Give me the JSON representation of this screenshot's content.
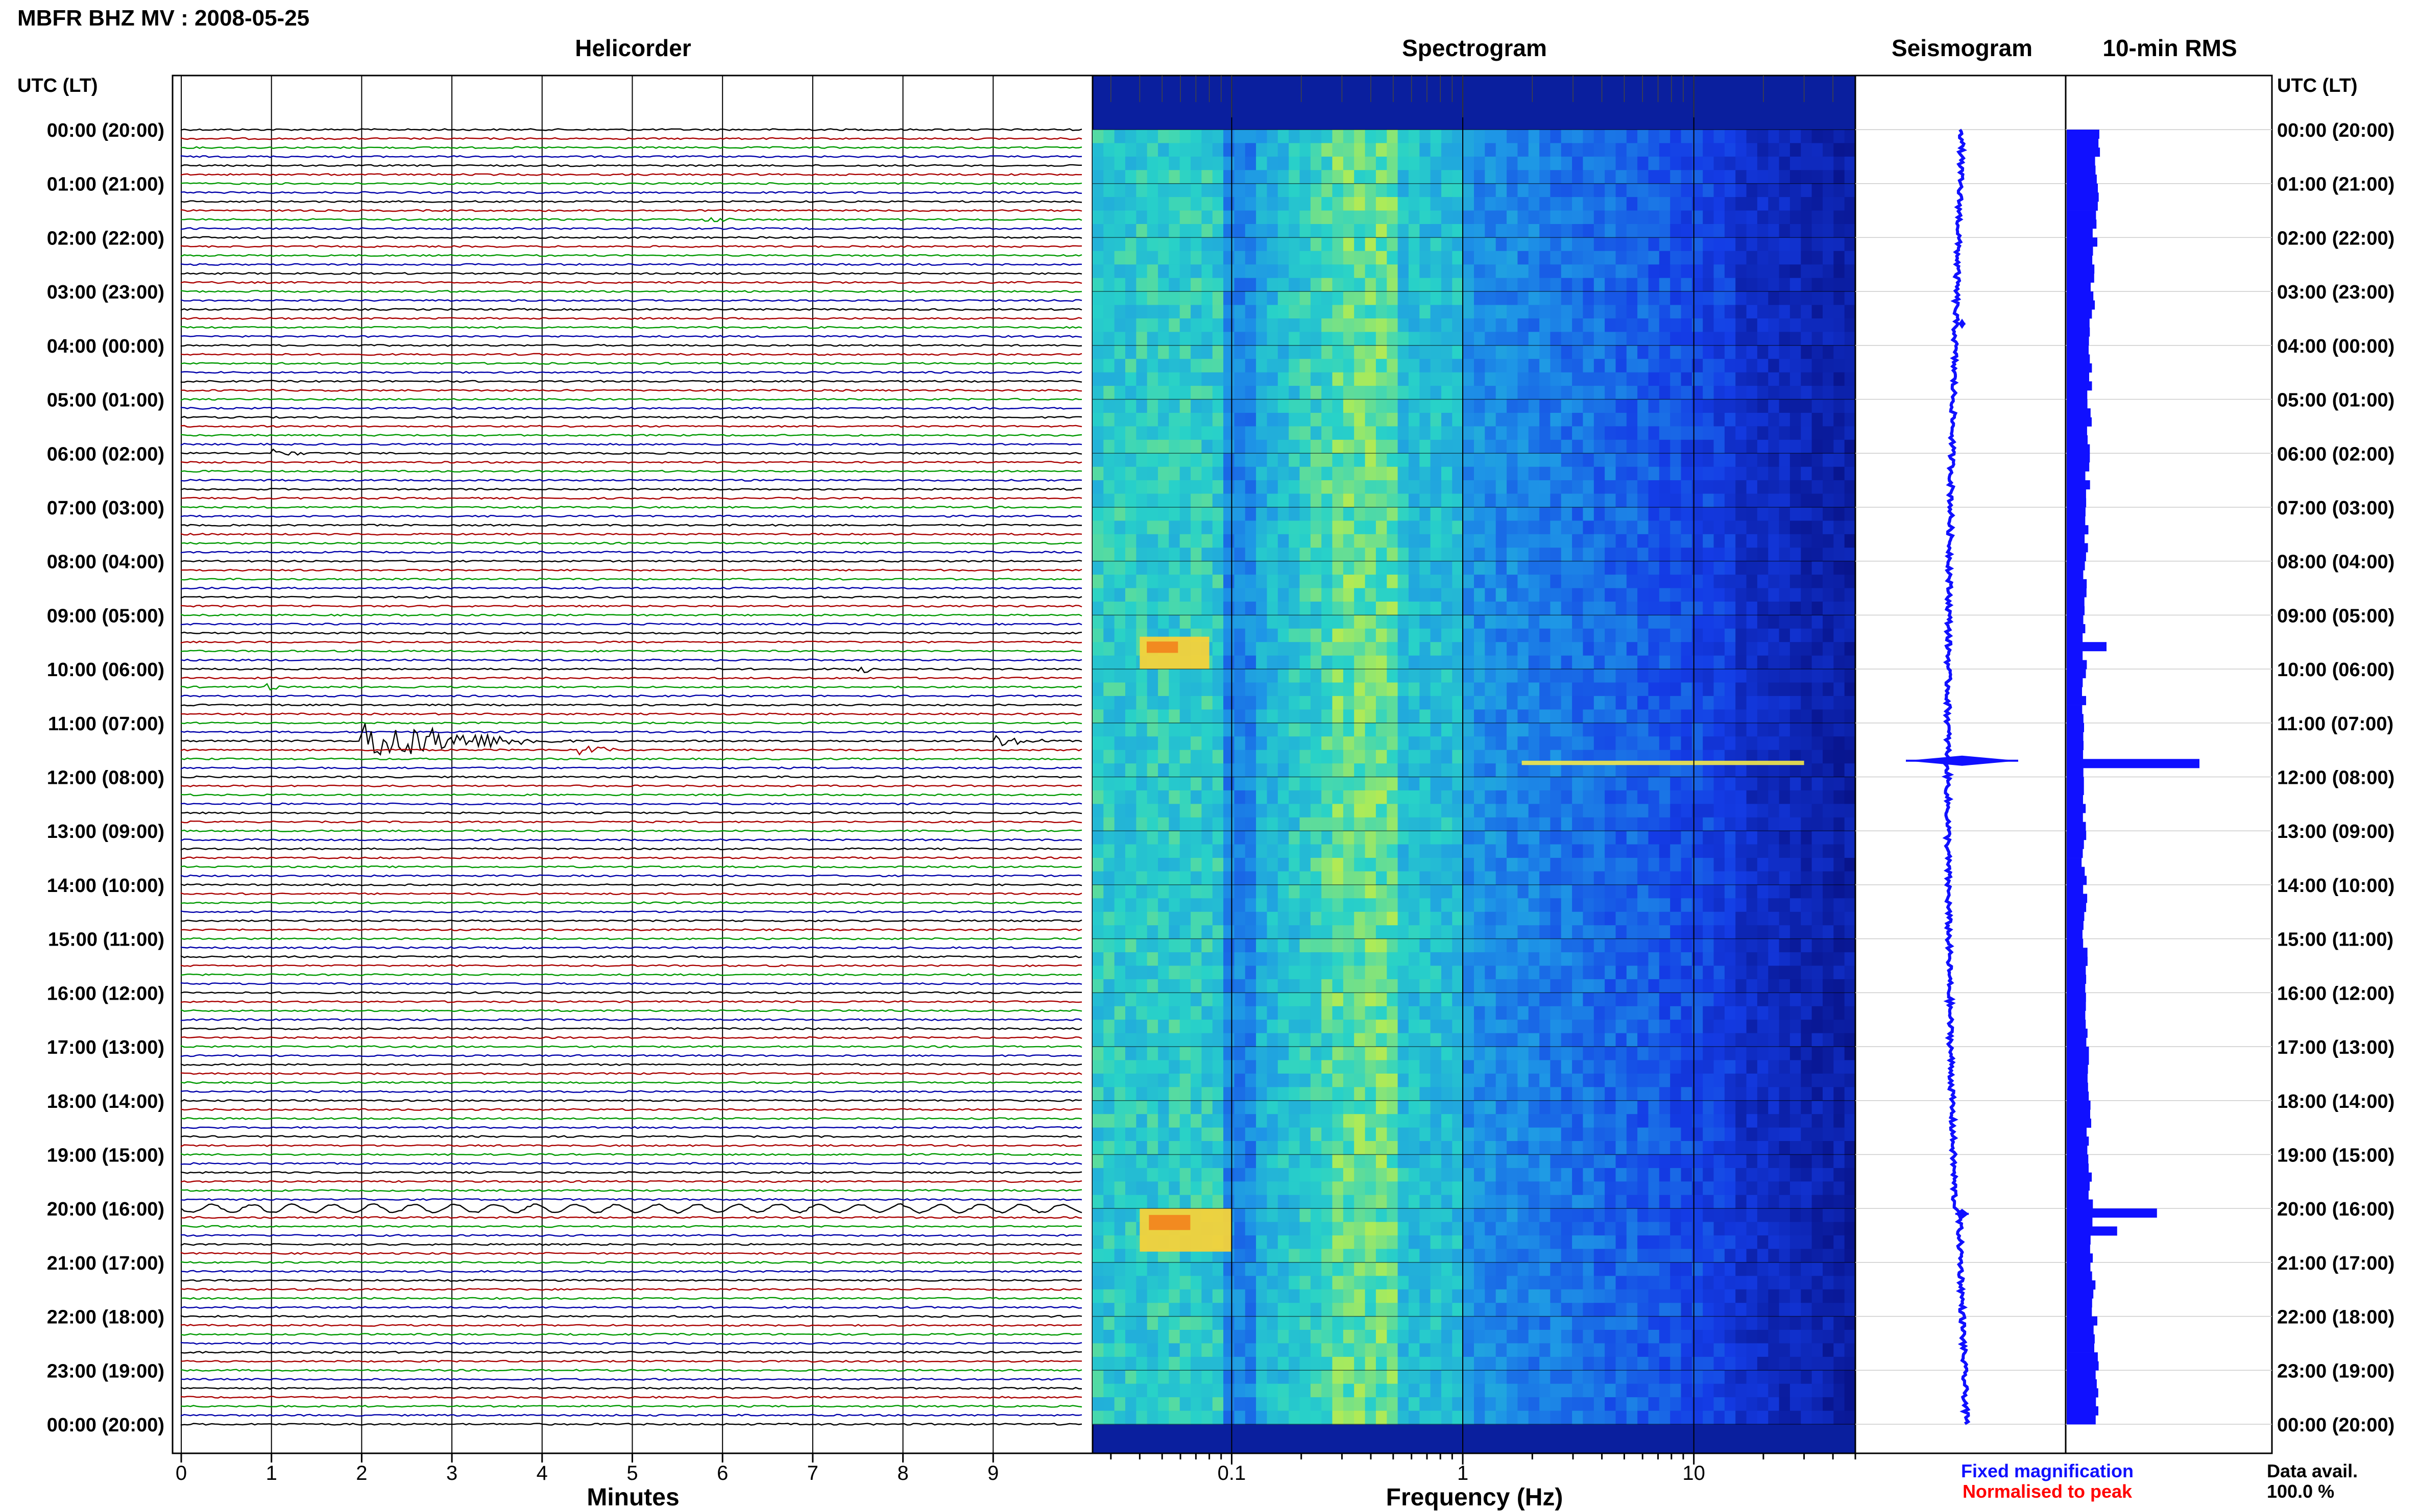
{
  "header": {
    "title": "MBFR BHZ MV : 2008-05-25"
  },
  "panels": {
    "helicorder": "Helicorder",
    "spectrogram": "Spectrogram",
    "seismogram": "Seismogram",
    "rms": "10-min RMS"
  },
  "axes": {
    "left_time_heading": "UTC (LT)",
    "right_time_heading": "UTC (LT)",
    "helicorder_xlabel": "Minutes",
    "spectrogram_xlabel": "Frequency (Hz)"
  },
  "legend": {
    "fixed": "Fixed magnification",
    "normalised": "Normalised to peak",
    "data_avail_label": "Data avail.",
    "data_avail_value": "100.0 %"
  },
  "colors": {
    "trace_cycle": [
      "#000000",
      "#aa0000",
      "#009900",
      "#0000aa"
    ],
    "seismogram": "#1010ff",
    "rms": "#1010ff",
    "legend_fixed": "#1010ff",
    "legend_normalised": "#ff0000"
  },
  "chart_data": [
    {
      "type": "line",
      "name": "helicorder",
      "xlabel": "Minutes",
      "x_ticks": [
        0,
        1,
        2,
        3,
        4,
        5,
        6,
        7,
        8,
        9
      ],
      "xlim": [
        0,
        10
      ],
      "line_interval_minutes": 10,
      "lines_per_hour": 6,
      "time_labels": [
        "00:00 (20:00)",
        "01:00 (21:00)",
        "02:00 (22:00)",
        "03:00 (23:00)",
        "04:00 (00:00)",
        "05:00 (01:00)",
        "06:00 (02:00)",
        "07:00 (03:00)",
        "08:00 (04:00)",
        "09:00 (05:00)",
        "10:00 (06:00)",
        "11:00 (07:00)",
        "12:00 (08:00)",
        "13:00 (09:00)",
        "14:00 (10:00)",
        "15:00 (11:00)",
        "16:00 (12:00)",
        "17:00 (13:00)",
        "18:00 (14:00)",
        "19:00 (15:00)",
        "20:00 (16:00)",
        "21:00 (17:00)",
        "22:00 (18:00)",
        "23:00 (19:00)",
        "00:00 (20:00)"
      ],
      "events": [
        {
          "line": 68,
          "minute": 2.0,
          "duration": 2.5,
          "amplitude": 1.0
        },
        {
          "line": 69,
          "minute": 4.4,
          "duration": 0.6,
          "amplitude": 0.25
        },
        {
          "line": 68,
          "minute": 9.0,
          "duration": 0.8,
          "amplitude": 0.25
        },
        {
          "line": 120,
          "minute": 0.0,
          "duration": 10.0,
          "amplitude": 0.35
        },
        {
          "line": 60,
          "minute": 7.5,
          "duration": 0.4,
          "amplitude": 0.2
        },
        {
          "line": 10,
          "minute": 5.8,
          "duration": 0.4,
          "amplitude": 0.15
        },
        {
          "line": 62,
          "minute": 0.9,
          "duration": 0.3,
          "amplitude": 0.2
        },
        {
          "line": 36,
          "minute": 1.0,
          "duration": 0.5,
          "amplitude": 0.18
        }
      ]
    },
    {
      "type": "heatmap",
      "name": "spectrogram",
      "xlabel": "Frequency (Hz)",
      "x_scale": "log",
      "xlim": [
        0.025,
        50
      ],
      "x_tick_labels": [
        0.1,
        1,
        10
      ],
      "hours": 24,
      "hotspots": [
        {
          "hour": 9.4,
          "fmin": 0.04,
          "fmax": 0.08,
          "duration_hours": 0.6
        },
        {
          "hour": 20.0,
          "fmin": 0.04,
          "fmax": 0.1,
          "duration_hours": 0.8
        },
        {
          "hour": 11.7,
          "fmin": 1.8,
          "fmax": 30,
          "duration_hours": 0.08
        }
      ]
    },
    {
      "type": "line",
      "name": "seismogram",
      "hours": 24,
      "spikes": [
        {
          "hour": 11.7,
          "amplitude": 1.0
        },
        {
          "hour": 20.1,
          "amplitude": 0.12
        },
        {
          "hour": 3.6,
          "amplitude": 0.06
        }
      ]
    },
    {
      "type": "bar",
      "name": "10-min RMS",
      "hours": 24,
      "peaks": [
        {
          "hour": 11.7,
          "value": 1.0
        },
        {
          "hour": 20.0,
          "value": 0.68
        },
        {
          "hour": 20.3,
          "value": 0.38
        },
        {
          "hour": 9.5,
          "value": 0.3
        }
      ]
    }
  ]
}
